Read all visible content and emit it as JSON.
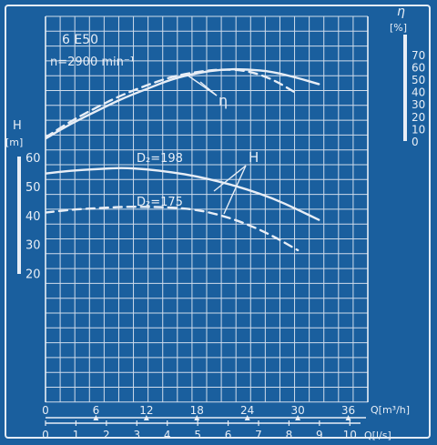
{
  "colors": {
    "background": "#1a5f9e",
    "ink": "#e8eef6",
    "grid": "#cfdceb"
  },
  "chart_data": {
    "type": "line",
    "title": "6 E50",
    "subtitle": "n=2900 min⁻¹",
    "x_q_m3h": {
      "label": "Q[m³/h]",
      "ticks": [
        "0",
        "6",
        "12",
        "18",
        "24",
        "30",
        "36"
      ],
      "range": [
        0,
        38
      ]
    },
    "x_q_ls": {
      "label": "Q[l/s]",
      "ticks": [
        "0",
        "1",
        "2",
        "3",
        "4",
        "5",
        "6",
        "7",
        "8",
        "9",
        "10"
      ],
      "range": [
        0,
        10.5
      ]
    },
    "y_head": {
      "label": "H",
      "unit": "[m]",
      "ticks": [
        "20",
        "30",
        "40",
        "50",
        "60"
      ]
    },
    "y_eff": {
      "label": "η",
      "unit": "[%]",
      "ticks": [
        "0",
        "10",
        "20",
        "30",
        "40",
        "50",
        "60",
        "70"
      ]
    },
    "annotations": [
      {
        "text": "D₂=198",
        "targets": "H curve (solid)"
      },
      {
        "text": "D₂=175",
        "targets": "H curve (dashed)"
      },
      {
        "text": "H",
        "targets": "head curves"
      },
      {
        "text": "η",
        "targets": "efficiency curves"
      }
    ],
    "series": [
      {
        "name": "H, D₂=198",
        "axis": "head",
        "style": "solid",
        "x_m3h": [
          0,
          3,
          6,
          9,
          12,
          15,
          18,
          21,
          24,
          27,
          30,
          32.5
        ],
        "y": [
          54.5,
          55.5,
          56,
          56.5,
          56,
          55,
          53.5,
          51.5,
          49,
          46,
          42,
          38.5
        ]
      },
      {
        "name": "H, D₂=175",
        "axis": "head",
        "style": "dashed",
        "x_m3h": [
          0,
          3,
          6,
          9,
          12,
          15,
          18,
          21,
          24,
          27,
          30
        ],
        "y": [
          41,
          42,
          42.5,
          43,
          43,
          42.8,
          42,
          40,
          37,
          33,
          28
        ]
      },
      {
        "name": "η, D₂=198",
        "axis": "eff",
        "style": "solid",
        "x_m3h": [
          0,
          3,
          6,
          9,
          12,
          15,
          18,
          21,
          24,
          27,
          30,
          32.5
        ],
        "y": [
          2,
          14,
          24,
          34,
          42,
          50,
          55,
          58,
          58,
          56,
          51,
          46
        ]
      },
      {
        "name": "η, D₂=175",
        "axis": "eff",
        "style": "dashed",
        "x_m3h": [
          0,
          3,
          6,
          9,
          12,
          15,
          18,
          21,
          24,
          27,
          29.5
        ],
        "y": [
          3,
          16,
          27,
          37,
          45,
          52,
          56,
          58,
          57,
          50,
          40
        ]
      }
    ]
  }
}
